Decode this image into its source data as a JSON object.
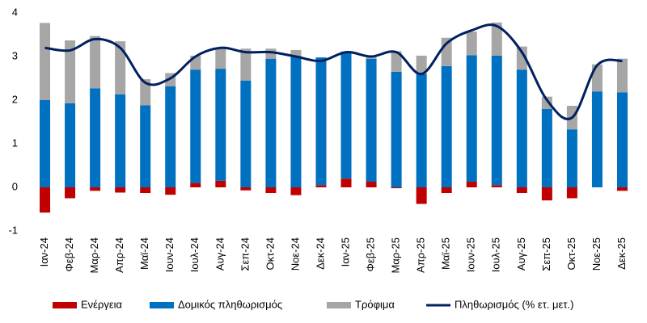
{
  "chart_data": {
    "type": "bar",
    "categories": [
      "Ιαν-24",
      "Φεβ-24",
      "Μαρ-24",
      "Απρ-24",
      "Μαϊ-24",
      "Ιουν-24",
      "Ιουλ-24",
      "Αυγ-24",
      "Σεπ-24",
      "Οκτ-24",
      "Νοε-24",
      "Δεκ-24",
      "Ιαν-25",
      "Φεβ-25",
      "Μαρ-25",
      "Απρ-25",
      "Μαϊ-25",
      "Ιουν-25",
      "Ιουλ-25",
      "Αυγ-25",
      "Σεπ-25",
      "Οκτ-25",
      "Νοε-25",
      "Δεκ-25"
    ],
    "series": [
      {
        "name": "Ενέργεια",
        "color": "#c00000",
        "values": [
          -0.58,
          -0.25,
          -0.08,
          -0.12,
          -0.13,
          -0.17,
          0.1,
          0.15,
          -0.07,
          -0.13,
          -0.18,
          0.05,
          0.2,
          0.13,
          -0.02,
          -0.38,
          -0.13,
          0.13,
          0.05,
          -0.13,
          -0.3,
          -0.25,
          0,
          -0.08
        ]
      },
      {
        "name": "Δομικός πληθωρισμός",
        "color": "#0070c0",
        "values": [
          2.0,
          1.93,
          2.27,
          2.13,
          1.88,
          2.32,
          2.6,
          2.57,
          2.45,
          2.95,
          3.0,
          2.93,
          2.9,
          2.82,
          2.65,
          2.6,
          2.78,
          2.9,
          2.97,
          2.7,
          1.8,
          1.33,
          2.2,
          2.18
        ]
      },
      {
        "name": "Τρόφιμα",
        "color": "#a6a6a6",
        "values": [
          1.77,
          1.44,
          1.2,
          1.22,
          0.6,
          0.3,
          0.32,
          0.46,
          0.73,
          0.23,
          0.15,
          0,
          0.02,
          0.07,
          0.47,
          0.42,
          0.65,
          0.54,
          0.76,
          0.53,
          0.28,
          0.54,
          0.62,
          0.77
        ]
      },
      {
        "name": "Πληθωρισμός (% ετ. μετ.)",
        "color": "#002060",
        "type": "line",
        "values": [
          3.2,
          3.14,
          3.4,
          3.2,
          2.4,
          2.5,
          3.0,
          3.2,
          3.1,
          3.1,
          3.0,
          2.9,
          3.1,
          3.0,
          3.1,
          2.6,
          3.3,
          3.6,
          3.7,
          3.1,
          2.0,
          1.6,
          2.8,
          2.9
        ]
      }
    ],
    "ylim": [
      -1,
      4
    ],
    "yticks": [
      -1,
      0,
      1,
      2,
      3,
      4
    ]
  }
}
